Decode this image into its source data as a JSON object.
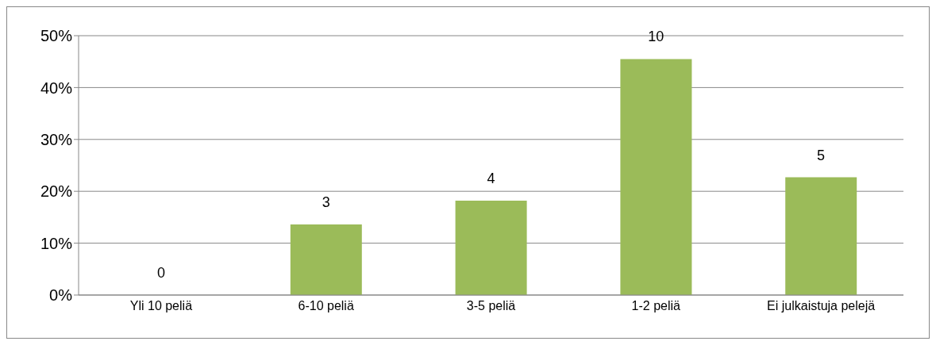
{
  "chart_data": {
    "type": "bar",
    "categories": [
      "Yli 10 peliä",
      "6-10 peliä",
      "3-5 peliä",
      "1-2 peliä",
      "Ei julkaistuja pelejä"
    ],
    "values": [
      0,
      13.6,
      18.2,
      45.5,
      22.7
    ],
    "annotations": [
      {
        "text": "0",
        "x": "Yli 10 peliä",
        "y": 0
      },
      {
        "text": "3",
        "x": "6-10 peliä",
        "y": 13.6
      },
      {
        "text": "4",
        "x": "3-5 peliä",
        "y": 18.2
      },
      {
        "text": "10",
        "x": "1-2 peliä",
        "y": 45.5
      },
      {
        "text": "5",
        "x": "Ei julkaistuja pelejä",
        "y": 22.7
      }
    ],
    "color": "#9bbb59",
    "ylim": [
      0,
      50
    ],
    "yticks": [
      {
        "value": 0,
        "label": "0%"
      },
      {
        "value": 10,
        "label": "10%"
      },
      {
        "value": 20,
        "label": "20%"
      },
      {
        "value": 30,
        "label": "30%"
      },
      {
        "value": 40,
        "label": "40%"
      },
      {
        "value": 50,
        "label": "50%"
      }
    ],
    "grid": "y",
    "legend": false
  }
}
